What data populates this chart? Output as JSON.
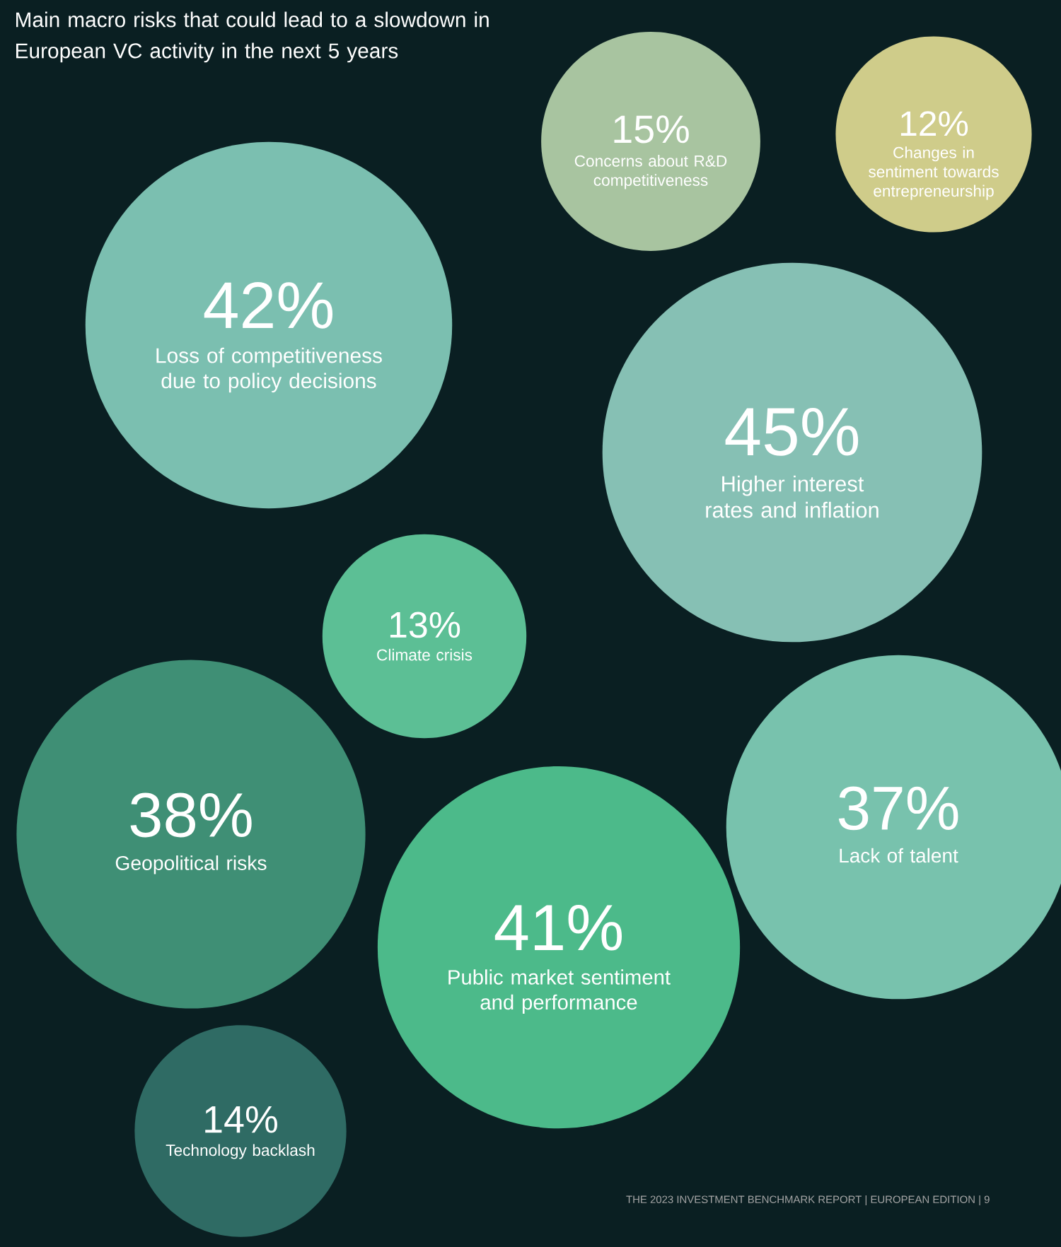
{
  "chart_data": {
    "type": "other",
    "title": "Main macro risks that could lead to a slowdown in European VC activity in the next 5 years",
    "categories": [
      "Loss of competitiveness due to policy decisions",
      "Higher interest rates and inflation",
      "Concerns about R&D competitiveness",
      "Changes in sentiment towards entrepreneurship",
      "Climate crisis",
      "Geopolitical risks",
      "Public market sentiment and performance",
      "Lack of talent",
      "Technology backlash"
    ],
    "values": [
      42,
      45,
      15,
      12,
      13,
      38,
      41,
      37,
      14
    ],
    "value_labels": [
      "42%",
      "45%",
      "15%",
      "12%",
      "13%",
      "38%",
      "41%",
      "37%",
      "14%"
    ],
    "colors": [
      "#7bbfb0",
      "#86c0b4",
      "#a8c4a0",
      "#cfcc8a",
      "#5cbf95",
      "#3f8f75",
      "#4cba8a",
      "#78c2ad",
      "#2f6b64"
    ],
    "annotations": [
      "THE 2023 INVESTMENT BENCHMARK REPORT | EUROPEAN EDITION | 9"
    ]
  }
}
